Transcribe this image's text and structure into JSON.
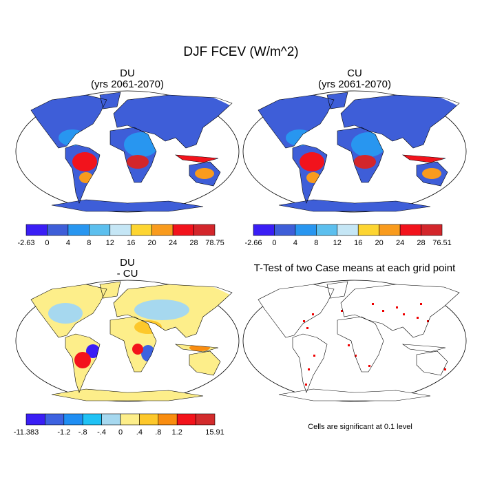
{
  "title": "DJF FCEV (W/m^2)",
  "panels": [
    {
      "title": "DU",
      "subtitle": "(yrs 2061-2070)",
      "colorbar": {
        "colors": [
          "#3a1ef5",
          "#3e5ed8",
          "#2896f0",
          "#5cbfee",
          "#c5e6f5",
          "#fdd531",
          "#f99b1d",
          "#f2131c",
          "#d3262b"
        ],
        "labels": [
          "-2.63",
          "0",
          "4",
          "8",
          "12",
          "16",
          "20",
          "24",
          "28",
          "78.75"
        ]
      }
    },
    {
      "title": "CU",
      "subtitle": "(yrs 2061-2070)",
      "colorbar": {
        "colors": [
          "#3a1ef5",
          "#3e5ed8",
          "#2896f0",
          "#5cbfee",
          "#c5e6f5",
          "#fdd531",
          "#f99b1d",
          "#f2131c",
          "#d3262b"
        ],
        "labels": [
          "-2.66",
          "0",
          "4",
          "8",
          "12",
          "16",
          "20",
          "24",
          "28",
          "76.51"
        ]
      }
    },
    {
      "title": "DU",
      "subtitle": "- CU",
      "colorbar": {
        "colors": [
          "#3a1ef5",
          "#3d62e0",
          "#1f8ef3",
          "#20c2f5",
          "#a6d8ef",
          "#fdee8a",
          "#fdc82b",
          "#f98d10",
          "#f3131b",
          "#d22b2c"
        ],
        "labels": [
          "-11.383",
          null,
          "-1.2",
          "-.8",
          "-.4",
          "0",
          ".4",
          ".8",
          "1.2",
          null,
          "15.91"
        ]
      }
    },
    {
      "title": "T-Test of two Case means at each grid point",
      "note": "Cells are significant at 0.1 level"
    }
  ]
}
